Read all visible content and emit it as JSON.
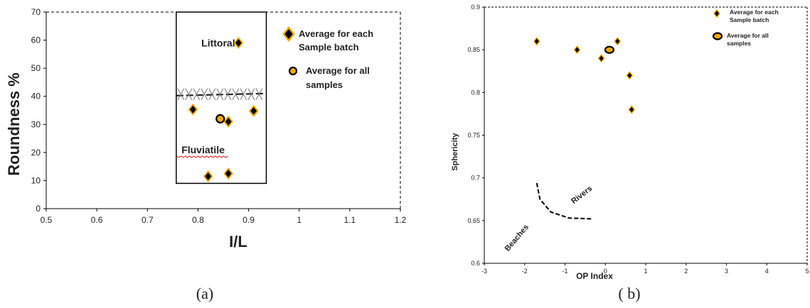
{
  "chart_data": [
    {
      "type": "scatter",
      "panel_label": "(a)",
      "xlabel": "I/L",
      "ylabel": "Roundness %",
      "xlim": [
        0.5,
        1.2
      ],
      "ylim": [
        0,
        70
      ],
      "xticks": [
        "0.5",
        "0.6",
        "0.7",
        "0.8",
        "0.9",
        "1",
        "1.1",
        "1.2"
      ],
      "yticks": [
        "0",
        "10",
        "20",
        "30",
        "40",
        "50",
        "60",
        "70"
      ],
      "grid": false,
      "legend_placement": "top-right",
      "series": [
        {
          "name": "Average for each Sample batch",
          "marker": "diamond",
          "points": [
            [
              0.88,
              59
            ],
            [
              0.79,
              35.3
            ],
            [
              0.91,
              34.8
            ],
            [
              0.86,
              31
            ],
            [
              0.82,
              11.5
            ],
            [
              0.86,
              12.5
            ]
          ]
        },
        {
          "name": "Average for all samples",
          "marker": "circle",
          "points": [
            [
              0.844,
              32
            ]
          ]
        }
      ],
      "legend": {
        "entries": [
          {
            "lines": [
              "Average for each",
              "Sample batch"
            ],
            "marker": "diamond"
          },
          {
            "lines": [
              "Average for all",
              "samples"
            ],
            "marker": "circle"
          }
        ]
      },
      "regions": [
        {
          "label": "Littoral",
          "x": 0.84,
          "y": 59
        },
        {
          "label": "Fluviatile",
          "x": 0.81,
          "y": 21
        }
      ],
      "box": {
        "x": [
          0.757,
          0.935
        ],
        "y": [
          9,
          70
        ]
      },
      "boundary_y": 40.5
    },
    {
      "type": "scatter",
      "panel_label": "( b)",
      "xlabel": "OP Index",
      "ylabel": "Sphericity",
      "xlim": [
        -3,
        5
      ],
      "ylim": [
        0.6,
        0.9
      ],
      "xticks": [
        "-3",
        "-2",
        "-1",
        "0",
        "1",
        "2",
        "3",
        "4",
        "5"
      ],
      "yticks": [
        "0.6",
        "0.65",
        "0.7",
        "0.75",
        "0.8",
        "0.85",
        "0.9"
      ],
      "grid": false,
      "legend_placement": "top-right",
      "series": [
        {
          "name": "Average for each Sample batch",
          "marker": "diamond",
          "points": [
            [
              -1.7,
              0.86
            ],
            [
              -0.7,
              0.85
            ],
            [
              -0.1,
              0.84
            ],
            [
              0.3,
              0.86
            ],
            [
              0.6,
              0.82
            ],
            [
              0.65,
              0.78
            ]
          ]
        },
        {
          "name": "Average for all samples",
          "marker": "circle",
          "points": [
            [
              0.1,
              0.85
            ]
          ]
        }
      ],
      "legend": {
        "entries": [
          {
            "lines": [
              "Average for each",
              "Sample batch"
            ],
            "marker": "diamond"
          },
          {
            "lines": [
              "Average for all",
              "samples"
            ],
            "marker": "circle"
          }
        ]
      },
      "annotations": [
        {
          "label": "Rivers",
          "x": -0.55,
          "y": 0.678,
          "rotate": -38
        },
        {
          "label": "Beaches",
          "x": -2.15,
          "y": 0.628,
          "rotate": -50
        }
      ],
      "divider_curve": [
        [
          -1.7,
          0.694
        ],
        [
          -1.62,
          0.675
        ],
        [
          -1.35,
          0.66
        ],
        [
          -0.9,
          0.653
        ],
        [
          -0.3,
          0.652
        ]
      ]
    }
  ]
}
